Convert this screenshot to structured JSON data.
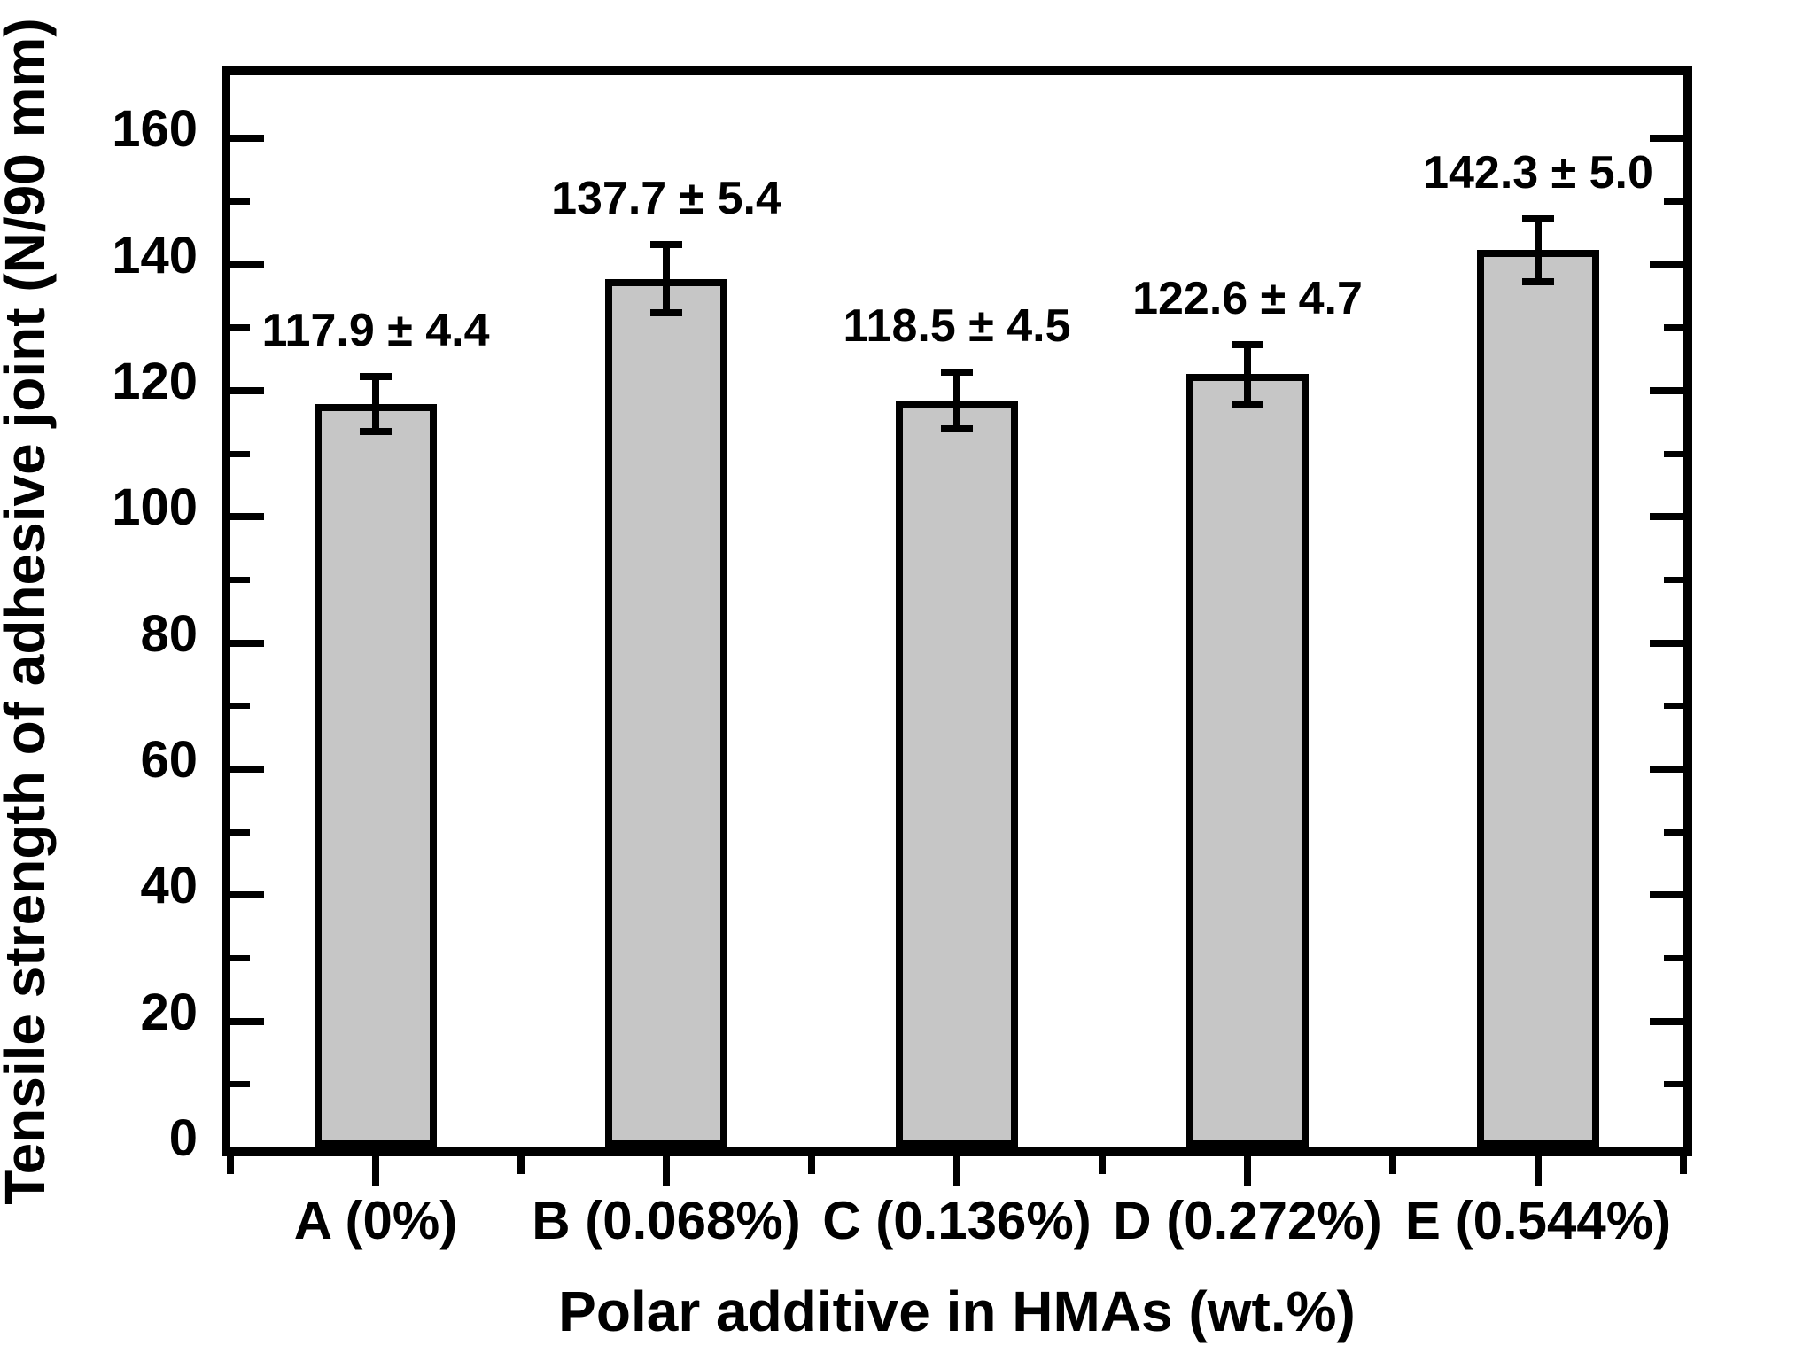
{
  "chart_data": {
    "type": "bar",
    "title": "",
    "xlabel": "Polar additive in HMAs (wt.%)",
    "ylabel": "Tensile strength of adhesive joint (N/90 mm)",
    "categories": [
      "A (0%)",
      "B (0.068%)",
      "C (0.136%)",
      "D (0.272%)",
      "E (0.544%)"
    ],
    "values": [
      117.9,
      137.7,
      118.5,
      122.6,
      142.3
    ],
    "errors": [
      4.4,
      5.4,
      4.5,
      4.7,
      5.0
    ],
    "annotations": [
      "117.9 ± 4.4",
      "137.7 ± 5.4",
      "118.5 ± 4.5",
      "122.6 ± 4.7",
      "142.3 ± 5.0"
    ],
    "ylim": [
      0,
      170
    ],
    "yticks_major": [
      0,
      20,
      40,
      60,
      80,
      100,
      120,
      140,
      160
    ],
    "ytick_minor_step": 10,
    "bar_color": "#c6c6c6",
    "edge_color": "#000000",
    "background_color": "#ffffff",
    "grid": false,
    "legend": null
  }
}
